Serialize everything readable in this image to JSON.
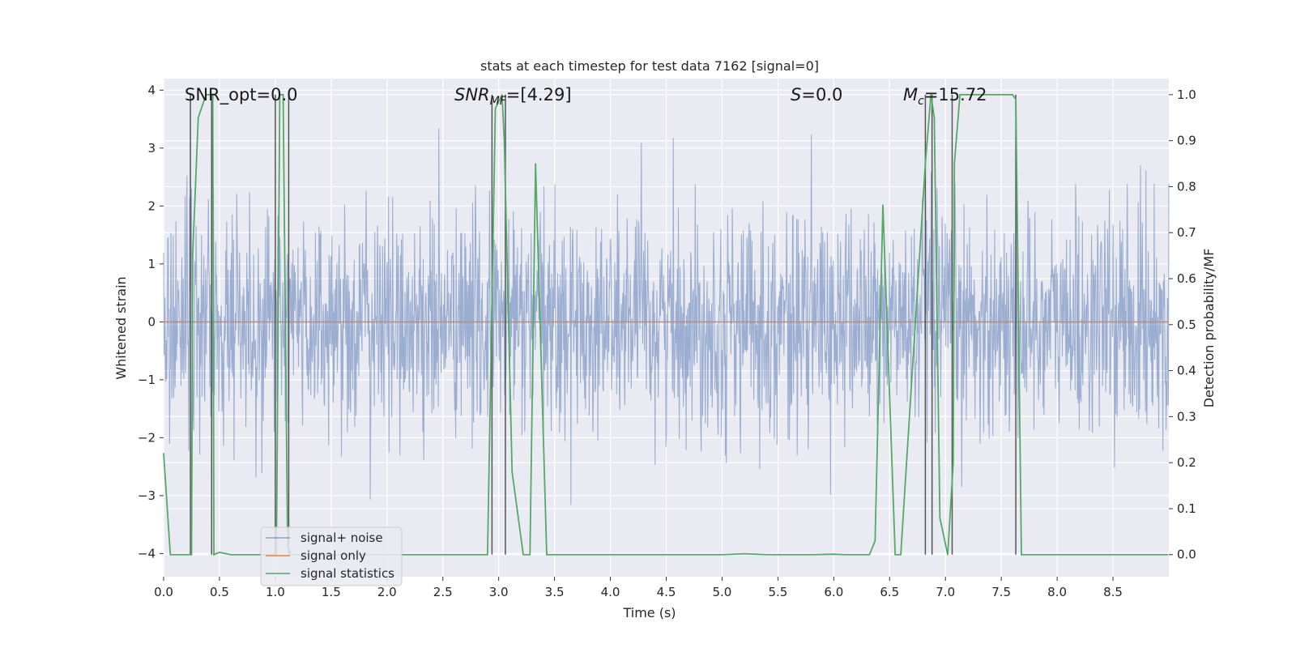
{
  "chart_data": {
    "type": "line",
    "title": "stats at each timestep for test data 7162 [signal=0]",
    "xlabel": "Time (s)",
    "ylabel_left": "Whitened strain",
    "ylabel_right": "Detection probability/MF",
    "xlim": [
      0.0,
      9.0
    ],
    "ylim_left": [
      -4.4,
      4.2
    ],
    "ylim_right": [
      -0.048,
      1.035
    ],
    "x_ticks": [
      "0.0",
      "0.5",
      "1.0",
      "1.5",
      "2.0",
      "2.5",
      "3.0",
      "3.5",
      "4.0",
      "4.5",
      "5.0",
      "5.5",
      "6.0",
      "6.5",
      "7.0",
      "7.5",
      "8.0",
      "8.5"
    ],
    "x_tick_values": [
      0.0,
      0.5,
      1.0,
      1.5,
      2.0,
      2.5,
      3.0,
      3.5,
      4.0,
      4.5,
      5.0,
      5.5,
      6.0,
      6.5,
      7.0,
      7.5,
      8.0,
      8.5
    ],
    "y_left_ticks": [
      "4",
      "3",
      "2",
      "1",
      "0",
      "−1",
      "−2",
      "−3",
      "−4"
    ],
    "y_left_tick_values": [
      4,
      3,
      2,
      1,
      0,
      -1,
      -2,
      -3,
      -4
    ],
    "y_right_ticks": [
      "1.0",
      "0.9",
      "0.8",
      "0.7",
      "0.6",
      "0.5",
      "0.4",
      "0.3",
      "0.2",
      "0.1",
      "0.0"
    ],
    "y_right_tick_values": [
      1.0,
      0.9,
      0.8,
      0.7,
      0.6,
      0.5,
      0.4,
      0.3,
      0.2,
      0.1,
      0.0
    ],
    "annotations": {
      "snr_opt": "SNR_opt=0.0",
      "snr_mf_base": "SNR",
      "snr_mf_sub": "MF",
      "snr_mf_value": "=[4.29]",
      "s_symbol": "S",
      "s_value": "=0.0",
      "mc_base": "M",
      "mc_sub": "c",
      "mc_value": "=15.72"
    },
    "legend": {
      "position": "lower-left",
      "entries": [
        "signal+ noise",
        "signal only",
        "signal statistics"
      ]
    },
    "colors": {
      "noise": "#4c72b0",
      "signal_only": "#dd8452",
      "statistics": "#55a868",
      "vlines": "#555555",
      "background": "#eaeaf2",
      "grid": "#ffffff"
    },
    "series": [
      {
        "name": "signal+ noise",
        "axis": "left",
        "style": "dense noise, approx. amplitude 1.5 sigma with peaks to 3.8",
        "seed": 7162,
        "n_points": 2200,
        "sigma": 0.95
      },
      {
        "name": "signal only",
        "axis": "left",
        "x": [
          0.0,
          9.0
        ],
        "y": [
          0.0,
          0.0
        ]
      },
      {
        "name": "signal statistics",
        "axis": "right",
        "x": [
          0.0,
          0.06,
          0.25,
          0.26,
          0.31,
          0.38,
          0.44,
          0.45,
          0.5,
          0.6,
          0.75,
          1.0,
          1.01,
          1.04,
          1.07,
          1.11,
          1.14,
          1.2,
          1.5,
          2.0,
          2.5,
          2.9,
          2.97,
          3.03,
          3.05,
          3.12,
          3.22,
          3.28,
          3.33,
          3.43,
          3.5,
          4.0,
          4.5,
          5.0,
          5.2,
          5.4,
          5.8,
          6.0,
          6.1,
          6.2,
          6.32,
          6.37,
          6.44,
          6.55,
          6.6,
          6.82,
          6.87,
          6.9,
          6.95,
          7.02,
          7.07,
          7.08,
          7.13,
          7.5,
          7.6,
          7.63,
          7.68,
          8.0,
          8.5,
          8.99
        ],
        "y": [
          0.22,
          0.0,
          0.0,
          0.65,
          0.95,
          1.0,
          1.0,
          0.0,
          0.005,
          0.0,
          0.0,
          0.0,
          0.0,
          1.0,
          1.0,
          0.02,
          0.0,
          0.0,
          0.0,
          0.0,
          0.0,
          0.0,
          0.97,
          1.0,
          0.9,
          0.18,
          0.0,
          0.0,
          0.85,
          0.0,
          0.0,
          0.0,
          0.0,
          0.0,
          0.002,
          0.0,
          0.0,
          0.001,
          0.0,
          0.0,
          0.0,
          0.03,
          0.76,
          0.0,
          0.0,
          0.85,
          1.0,
          0.95,
          0.08,
          0.0,
          0.2,
          0.85,
          1.0,
          1.0,
          1.0,
          0.99,
          0.0,
          0.0,
          0.0,
          0.0
        ]
      }
    ],
    "vertical_lines_x": [
      0.24,
      0.43,
      1.0,
      1.12,
      2.94,
      3.06,
      6.82,
      6.88,
      7.06,
      7.63
    ]
  }
}
